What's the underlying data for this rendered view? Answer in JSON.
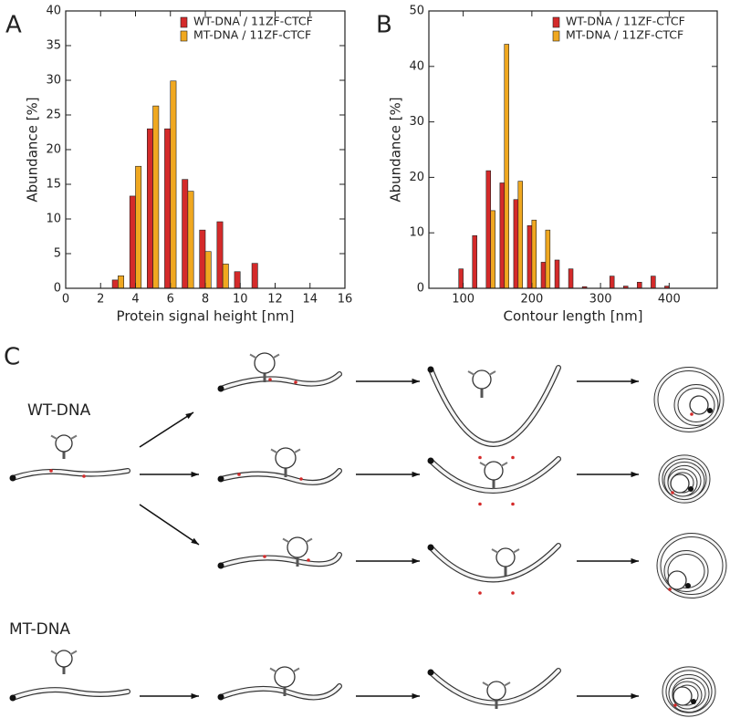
{
  "panel_labels": [
    "A",
    "B",
    "C"
  ],
  "diagram": {
    "rows": [
      "WT-DNA",
      "MT-DNA"
    ]
  },
  "chart_data": [
    {
      "type": "bar",
      "xlabel": "Protein signal height [nm]",
      "ylabel": "Abundance [%]",
      "x": [
        3,
        4,
        5,
        6,
        7,
        8,
        9,
        10,
        11
      ],
      "series": [
        {
          "name": "WT-DNA / 11ZF-CTCF",
          "color": "#d42a2a",
          "values": [
            1.2,
            13.3,
            23,
            23,
            15.7,
            8.4,
            9.6,
            2.4,
            3.6
          ]
        },
        {
          "name": "MT-DNA / 11ZF-CTCF",
          "color": "#f0a820",
          "values": [
            1.8,
            17.6,
            26.3,
            29.9,
            14,
            5.3,
            3.5,
            0,
            0
          ]
        }
      ],
      "xlim": [
        0,
        16
      ],
      "xticks": [
        0,
        2,
        4,
        6,
        8,
        10,
        12,
        14,
        16
      ],
      "ylim": [
        0,
        40
      ],
      "yticks": [
        0,
        5,
        10,
        15,
        20,
        25,
        30,
        35,
        40
      ],
      "legend": "upper right"
    },
    {
      "type": "bar",
      "xlabel": "Contour length [nm]",
      "ylabel": "Abundance [%]",
      "x": [
        100,
        120,
        140,
        160,
        180,
        200,
        220,
        240,
        260,
        280,
        300,
        320,
        340,
        360,
        380,
        400
      ],
      "series": [
        {
          "name": "WT-DNA / 11ZF-CTCF",
          "color": "#d42a2a",
          "values": [
            3.5,
            9.5,
            21.2,
            19,
            16,
            11.3,
            4.7,
            5.1,
            3.5,
            0.3,
            0,
            2.2,
            0.4,
            1.1,
            2.2,
            0.4
          ]
        },
        {
          "name": "MT-DNA / 11ZF-CTCF",
          "color": "#f0a820",
          "values": [
            0,
            0,
            14,
            44,
            19.3,
            12.3,
            10.5,
            0,
            0,
            0,
            0,
            0,
            0,
            0,
            0,
            0
          ]
        }
      ],
      "xlim": [
        50,
        470
      ],
      "xticks": [
        100,
        200,
        300,
        400
      ],
      "ylim": [
        0,
        50
      ],
      "yticks": [
        0,
        10,
        20,
        30,
        40,
        50
      ],
      "legend": "upper right"
    }
  ]
}
